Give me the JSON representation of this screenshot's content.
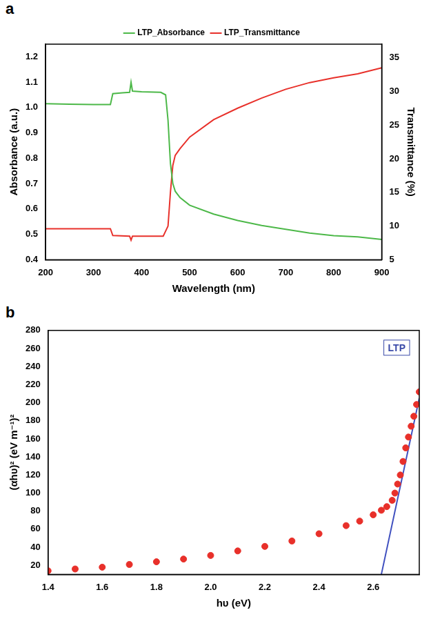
{
  "chart_data": [
    {
      "type": "line",
      "label": "a",
      "x_label": "Wavelength (nm)",
      "y_label": "Absorbance (a.u.)",
      "y2_label": "Transmittance (%)",
      "xlim": [
        200,
        900
      ],
      "xticks": [
        200,
        300,
        400,
        500,
        600,
        700,
        800,
        900
      ],
      "ylim": [
        0.4,
        1.25
      ],
      "yticks": [
        0.4,
        0.5,
        0.6,
        0.7,
        0.8,
        0.9,
        {
          "value": 1,
          "label": "1.0"
        },
        1.1,
        1.2
      ],
      "y2lim": [
        5,
        37
      ],
      "y2ticks": [
        5,
        10,
        15,
        20,
        25,
        30,
        35
      ],
      "grid": false,
      "legend": "top",
      "series": [
        {
          "name": "LTP_Absorbance",
          "color": "#4cb848",
          "line_style": "solid",
          "x": [
            200,
            250,
            300,
            335,
            340,
            360,
            375,
            378,
            381,
            400,
            440,
            450,
            455,
            460,
            465,
            470,
            480,
            500,
            550,
            600,
            650,
            700,
            750,
            800,
            850,
            900
          ],
          "values": [
            1.015,
            1.013,
            1.012,
            1.012,
            1.055,
            1.058,
            1.06,
            1.1,
            1.065,
            1.062,
            1.06,
            1.05,
            0.95,
            0.78,
            0.7,
            0.67,
            0.645,
            0.615,
            0.58,
            0.555,
            0.535,
            0.52,
            0.505,
            0.495,
            0.49,
            0.48
          ]
        },
        {
          "name": "LTP_Transmittance",
          "color": "#e8302a",
          "line_style": "solid",
          "axis": "y2",
          "x": [
            200,
            250,
            300,
            335,
            340,
            375,
            378,
            381,
            445,
            455,
            460,
            465,
            470,
            480,
            500,
            550,
            600,
            650,
            700,
            750,
            800,
            850,
            900
          ],
          "values": [
            9.6,
            9.6,
            9.6,
            9.6,
            8.6,
            8.5,
            7.9,
            8.5,
            8.5,
            10,
            15,
            19,
            20.5,
            21.5,
            23.2,
            25.8,
            27.5,
            29,
            30.3,
            31.3,
            32,
            32.6,
            33.5
          ]
        }
      ]
    },
    {
      "type": "line",
      "label": "b",
      "annotation": "LTP",
      "x_label": "hυ (eV)",
      "y_label": "(αhυ)² (eV m⁻¹)²",
      "xlim": [
        1.4,
        2.77
      ],
      "xticks": [
        1.4,
        1.6,
        1.8,
        {
          "value": 2,
          "label": "2.0"
        },
        2.2,
        2.4,
        2.6
      ],
      "ylim": [
        10,
        280
      ],
      "yticks": [
        20,
        40,
        60,
        80,
        100,
        120,
        140,
        160,
        180,
        200,
        220,
        240,
        260,
        280
      ],
      "grid": false,
      "series": [
        {
          "type": "scatter",
          "color": "#e8302a",
          "marker": "circle",
          "x": [
            1.4,
            1.5,
            1.6,
            1.7,
            1.8,
            1.9,
            2.0,
            2.1,
            2.2,
            2.3,
            2.4,
            2.5,
            2.55,
            2.6,
            2.63,
            2.65,
            2.67,
            2.68,
            2.69,
            2.7,
            2.71,
            2.72,
            2.73,
            2.74,
            2.75,
            2.76,
            2.77
          ],
          "values": [
            14,
            16,
            18,
            21,
            24,
            27,
            31,
            36,
            41,
            47,
            55,
            64,
            69,
            76,
            81,
            85,
            92,
            100,
            110,
            120,
            135,
            150,
            162,
            174,
            185,
            198,
            212
          ]
        },
        {
          "type": "line",
          "color": "#3f4fbf",
          "line_style": "solid",
          "x": [
            2.63,
            2.77
          ],
          "values": [
            10,
            205
          ]
        }
      ]
    }
  ]
}
